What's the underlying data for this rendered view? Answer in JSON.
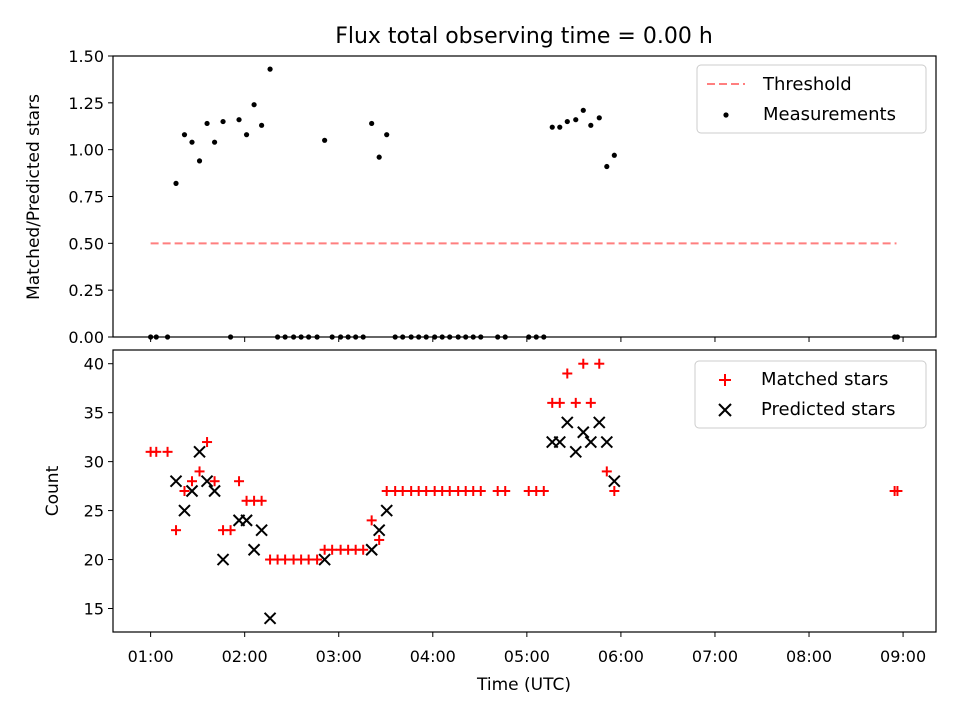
{
  "figure": {
    "title": "Flux total observing time = 0.00 h",
    "xlabel": "Time (UTC)",
    "x_ticks": [
      "01:00",
      "02:00",
      "03:00",
      "04:00",
      "05:00",
      "06:00",
      "07:00",
      "08:00",
      "09:00"
    ]
  },
  "chart_data": [
    {
      "type": "scatter",
      "ylabel": "Matched/Predicted stars",
      "ylim": [
        0,
        1.5
      ],
      "y_ticks": [
        "0.00",
        "0.25",
        "0.50",
        "0.75",
        "1.00",
        "1.25",
        "1.50"
      ],
      "x_unit": "hours UTC",
      "xlim": [
        0.6,
        9.35
      ],
      "legend": {
        "position": "top-right",
        "entries": [
          "Threshold",
          "Measurements"
        ]
      },
      "series": [
        {
          "name": "Threshold",
          "style": "dashed-line",
          "color": "#ff7f7f",
          "x": [
            1.0,
            8.93
          ],
          "y": [
            0.5,
            0.5
          ]
        },
        {
          "name": "Measurements",
          "style": "dot",
          "color": "#000000",
          "x": [
            1.0,
            1.06,
            1.18,
            1.27,
            1.36,
            1.44,
            1.52,
            1.6,
            1.68,
            1.77,
            1.85,
            1.94,
            2.02,
            2.1,
            2.18,
            2.27,
            2.35,
            2.43,
            2.52,
            2.6,
            2.68,
            2.77,
            2.85,
            2.93,
            3.02,
            3.1,
            3.18,
            3.26,
            3.35,
            3.43,
            3.51,
            3.6,
            3.68,
            3.77,
            3.85,
            3.93,
            4.02,
            4.1,
            4.18,
            4.27,
            4.35,
            4.43,
            4.51,
            4.69,
            4.77,
            5.02,
            5.1,
            5.18,
            5.27,
            5.35,
            5.43,
            5.52,
            5.6,
            5.68,
            5.77,
            5.85,
            5.93,
            8.91,
            8.94
          ],
          "y": [
            0,
            0,
            0,
            0.82,
            1.08,
            1.04,
            0.94,
            1.14,
            1.04,
            1.15,
            0,
            1.16,
            1.08,
            1.24,
            1.13,
            1.43,
            0,
            0,
            0,
            0,
            0,
            0,
            1.05,
            0,
            0,
            0,
            0,
            0,
            1.14,
            0.96,
            1.08,
            0,
            0,
            0,
            0,
            0,
            0,
            0,
            0,
            0,
            0,
            0,
            0,
            0,
            0,
            0,
            0,
            0,
            1.12,
            1.12,
            1.15,
            1.16,
            1.21,
            1.13,
            1.17,
            0.91,
            0.97,
            0,
            0
          ]
        }
      ]
    },
    {
      "type": "scatter",
      "ylabel": "Count",
      "ylim": [
        12.6,
        41.4
      ],
      "y_ticks": [
        "15",
        "20",
        "25",
        "30",
        "35",
        "40"
      ],
      "x_unit": "hours UTC",
      "xlim": [
        0.6,
        9.35
      ],
      "legend": {
        "position": "top-right",
        "entries": [
          "Matched stars",
          "Predicted stars"
        ]
      },
      "series": [
        {
          "name": "Matched stars",
          "marker": "plus",
          "color": "#ff0000",
          "x": [
            1.0,
            1.06,
            1.18,
            1.27,
            1.36,
            1.44,
            1.52,
            1.6,
            1.68,
            1.77,
            1.85,
            1.94,
            2.02,
            2.1,
            2.18,
            2.27,
            2.35,
            2.43,
            2.52,
            2.6,
            2.68,
            2.77,
            2.85,
            2.93,
            3.02,
            3.1,
            3.18,
            3.26,
            3.35,
            3.43,
            3.51,
            3.6,
            3.68,
            3.77,
            3.85,
            3.93,
            4.02,
            4.1,
            4.18,
            4.27,
            4.35,
            4.43,
            4.51,
            4.69,
            4.77,
            5.02,
            5.1,
            5.18,
            5.27,
            5.35,
            5.43,
            5.52,
            5.6,
            5.68,
            5.77,
            5.85,
            5.93,
            8.91,
            8.94
          ],
          "y": [
            31,
            31,
            31,
            23,
            27,
            28,
            29,
            32,
            28,
            23,
            23,
            28,
            26,
            26,
            26,
            20,
            20,
            20,
            20,
            20,
            20,
            20,
            21,
            21,
            21,
            21,
            21,
            21,
            24,
            22,
            27,
            27,
            27,
            27,
            27,
            27,
            27,
            27,
            27,
            27,
            27,
            27,
            27,
            27,
            27,
            27,
            27,
            27,
            36,
            36,
            39,
            36,
            40,
            36,
            40,
            29,
            27,
            27,
            27
          ]
        },
        {
          "name": "Predicted stars",
          "marker": "x",
          "color": "#000000",
          "x": [
            1.27,
            1.36,
            1.44,
            1.52,
            1.6,
            1.68,
            1.77,
            1.94,
            2.02,
            2.1,
            2.18,
            2.27,
            2.85,
            3.35,
            3.43,
            3.51,
            5.27,
            5.35,
            5.43,
            5.52,
            5.6,
            5.68,
            5.77,
            5.85,
            5.93
          ],
          "y": [
            28,
            25,
            27,
            31,
            28,
            27,
            20,
            24,
            24,
            21,
            23,
            14,
            20,
            21,
            23,
            25,
            32,
            32,
            34,
            31,
            33,
            32,
            34,
            32,
            28
          ]
        }
      ]
    }
  ]
}
